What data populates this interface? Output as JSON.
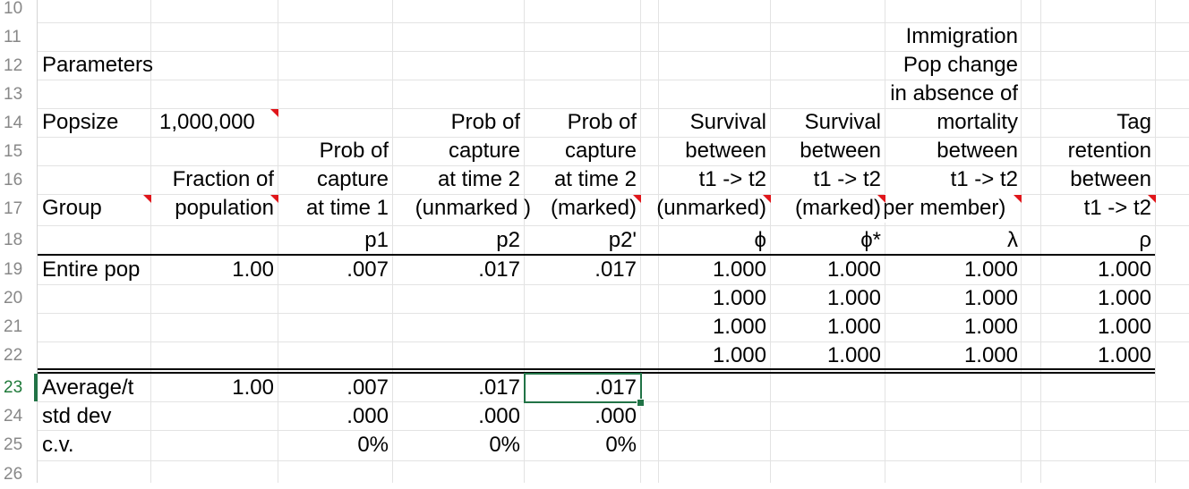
{
  "rows": [
    "10",
    "11",
    "12",
    "13",
    "14",
    "15",
    "16",
    "17",
    "18",
    "19",
    "20",
    "21",
    "22",
    "23",
    "24",
    "25",
    "26"
  ],
  "selected_row": "23",
  "labels": {
    "parameters": "Parameters",
    "popsize_label": "Popsize",
    "popsize_value": "1,000,000",
    "group": "Group",
    "entire_pop": "Entire pop",
    "average": "Average/t",
    "std_dev": "std dev",
    "cv": "c.v."
  },
  "headers": {
    "fraction": [
      "Fraction of",
      "population"
    ],
    "p1": [
      "Prob of",
      "capture",
      "at time 1",
      "p1"
    ],
    "p2": [
      "Prob of",
      "capture",
      "at time 2",
      "(unmarked )",
      "p2"
    ],
    "p2m": [
      "Prob of",
      "capture",
      "at time 2",
      "(marked)",
      "p2'"
    ],
    "phi": [
      "Survival",
      "between",
      "t1 -> t2",
      "(unmarked)",
      "ϕ"
    ],
    "phistar": [
      "Survival",
      "between",
      "t1 -> t2",
      "(marked)",
      "ϕ*"
    ],
    "lambda": [
      "Immigration",
      "Pop change",
      "in absence of",
      "mortality",
      "between",
      "t1 -> t2",
      "per member)",
      "λ"
    ],
    "rho": [
      "Tag",
      "retention",
      "between",
      "t1 -> t2",
      "ρ"
    ]
  },
  "data": {
    "entire_pop": {
      "fraction": "1.00",
      "p1": ".007",
      "p2": ".017",
      "p2m": ".017"
    },
    "survival_rows": [
      {
        "phi": "1.000",
        "phistar": "1.000",
        "lambda": "1.000",
        "rho": "1.000"
      },
      {
        "phi": "1.000",
        "phistar": "1.000",
        "lambda": "1.000",
        "rho": "1.000"
      },
      {
        "phi": "1.000",
        "phistar": "1.000",
        "lambda": "1.000",
        "rho": "1.000"
      },
      {
        "phi": "1.000",
        "phistar": "1.000",
        "lambda": "1.000",
        "rho": "1.000"
      }
    ],
    "average": {
      "fraction": "1.00",
      "p1": ".007",
      "p2": ".017",
      "p2m": ".017"
    },
    "std_dev": {
      "p1": ".000",
      "p2": ".000",
      "p2m": ".000"
    },
    "cv": {
      "p1": "0%",
      "p2": "0%",
      "p2m": "0%"
    }
  },
  "colors": {
    "comment_marker": "#e0161b",
    "selection": "#217346",
    "gridline": "#e3e3e3"
  }
}
